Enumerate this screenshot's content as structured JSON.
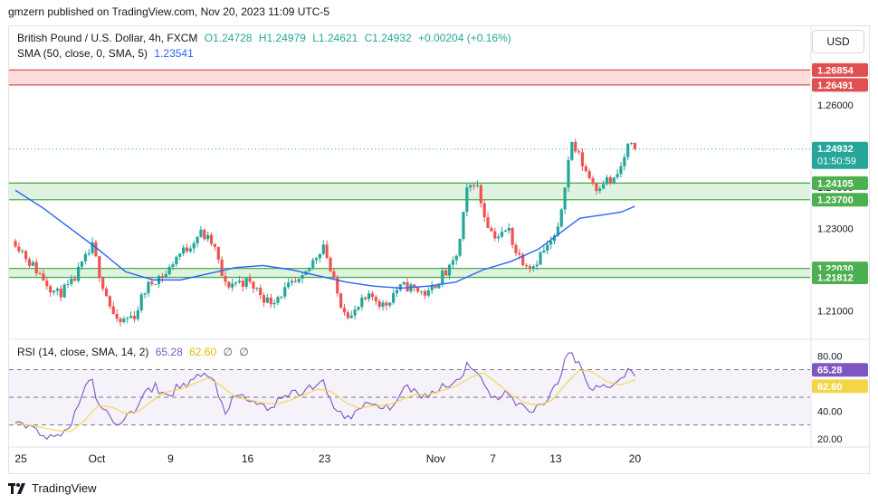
{
  "publisher_line": "gmzern published on TradingView.com, Nov 20, 2023 11:09 UTC-5",
  "legend": {
    "symbol": "British Pound / U.S. Dollar, 4h, FXCM",
    "open": "O1.24728",
    "high": "H1.24979",
    "low": "L1.24621",
    "close": "C1.24932",
    "change": "+0.00204 (+0.16%)",
    "sma_label": "SMA (50, close, 0, SMA, 5)",
    "sma_value": "1.23541"
  },
  "currency_button": "USD",
  "rsi_legend": {
    "label": "RSI (14, close, SMA, 14, 2)",
    "rsi": "65.28",
    "sma": "62.60",
    "d1": "∅",
    "d2": "∅"
  },
  "footer_brand": "TradingView",
  "colors": {
    "up": "#26a69a",
    "down": "#ef5350",
    "sma": "#2962ff",
    "rsi": "#7e57c2",
    "rsi_ma": "#f5d547",
    "zone_green_fill": "#dff3e0",
    "zone_green_line": "#4caf50",
    "zone_red_fill": "#fbdcdc",
    "zone_red_line": "#e05050"
  },
  "chart_data": [
    {
      "type": "candlestick",
      "symbol": "GBPUSD",
      "timeframe": "4h",
      "x_tick_labels": [
        "25",
        "Oct",
        "9",
        "16",
        "23",
        "Nov",
        "7",
        "13",
        "20"
      ],
      "y_ticks": [
        1.21,
        1.22,
        1.23,
        1.24,
        1.25,
        1.26
      ],
      "ylim": [
        1.2035,
        1.2717
      ],
      "price_labels": [
        {
          "value": 1.26854,
          "kind": "zone-top",
          "color": "#e05050"
        },
        {
          "value": 1.26491,
          "kind": "zone-bottom",
          "color": "#e05050"
        },
        {
          "value": 1.24932,
          "kind": "last-price",
          "color": "#26a69a",
          "countdown": "01:50:59"
        },
        {
          "value": 1.24105,
          "kind": "zone-top",
          "color": "#4caf50"
        },
        {
          "value": 1.237,
          "kind": "zone-bottom",
          "color": "#4caf50"
        },
        {
          "value": 1.2203,
          "kind": "zone-top",
          "color": "#4caf50"
        },
        {
          "value": 1.21812,
          "kind": "zone-bottom",
          "color": "#4caf50"
        }
      ],
      "zones": [
        {
          "from": 1.26491,
          "to": 1.26854,
          "color": "red"
        },
        {
          "from": 1.237,
          "to": 1.24105,
          "color": "green"
        },
        {
          "from": 1.21812,
          "to": 1.2203,
          "color": "green"
        }
      ],
      "close_path": [
        {
          "d": 0,
          "c": 1.227
        },
        {
          "d": 1,
          "c": 1.222
        },
        {
          "d": 2,
          "c": 1.218
        },
        {
          "d": 3,
          "c": 1.214
        },
        {
          "d": 4,
          "c": 1.216
        },
        {
          "d": 5,
          "c": 1.222
        },
        {
          "d": 5.6,
          "c": 1.2255
        },
        {
          "d": 6.2,
          "c": 1.218
        },
        {
          "d": 6.8,
          "c": 1.212
        },
        {
          "d": 7.4,
          "c": 1.2065
        },
        {
          "d": 8,
          "c": 1.208
        },
        {
          "d": 8.7,
          "c": 1.209
        },
        {
          "d": 9.4,
          "c": 1.215
        },
        {
          "d": 10.2,
          "c": 1.218
        },
        {
          "d": 11,
          "c": 1.219
        },
        {
          "d": 11.6,
          "c": 1.223
        },
        {
          "d": 12.4,
          "c": 1.225
        },
        {
          "d": 13.4,
          "c": 1.229
        },
        {
          "d": 14.4,
          "c": 1.226
        },
        {
          "d": 15.2,
          "c": 1.216
        },
        {
          "d": 16,
          "c": 1.217
        },
        {
          "d": 16.8,
          "c": 1.217
        },
        {
          "d": 17.6,
          "c": 1.215
        },
        {
          "d": 18.4,
          "c": 1.212
        },
        {
          "d": 19.2,
          "c": 1.214
        },
        {
          "d": 20,
          "c": 1.216
        },
        {
          "d": 20.8,
          "c": 1.217
        },
        {
          "d": 21.6,
          "c": 1.222
        },
        {
          "d": 22.4,
          "c": 1.2265
        },
        {
          "d": 23,
          "c": 1.218
        },
        {
          "d": 23.6,
          "c": 1.212
        },
        {
          "d": 24.4,
          "c": 1.2085
        },
        {
          "d": 25.2,
          "c": 1.212
        },
        {
          "d": 26,
          "c": 1.2135
        },
        {
          "d": 26.8,
          "c": 1.211
        },
        {
          "d": 27.6,
          "c": 1.215
        },
        {
          "d": 28.4,
          "c": 1.216
        },
        {
          "d": 29.2,
          "c": 1.215
        },
        {
          "d": 30,
          "c": 1.214
        },
        {
          "d": 30.8,
          "c": 1.218
        },
        {
          "d": 31.6,
          "c": 1.22
        },
        {
          "d": 32.2,
          "c": 1.225
        },
        {
          "d": 32.8,
          "c": 1.239
        },
        {
          "d": 33.4,
          "c": 1.242
        },
        {
          "d": 34,
          "c": 1.234
        },
        {
          "d": 34.6,
          "c": 1.229
        },
        {
          "d": 35.2,
          "c": 1.228
        },
        {
          "d": 35.8,
          "c": 1.23
        },
        {
          "d": 36.4,
          "c": 1.224
        },
        {
          "d": 37,
          "c": 1.222
        },
        {
          "d": 37.6,
          "c": 1.221
        },
        {
          "d": 38.2,
          "c": 1.224
        },
        {
          "d": 38.8,
          "c": 1.226
        },
        {
          "d": 39.4,
          "c": 1.229
        },
        {
          "d": 39.9,
          "c": 1.241
        },
        {
          "d": 40.4,
          "c": 1.251
        },
        {
          "d": 41,
          "c": 1.247
        },
        {
          "d": 41.6,
          "c": 1.243
        },
        {
          "d": 42.2,
          "c": 1.24
        },
        {
          "d": 42.8,
          "c": 1.242
        },
        {
          "d": 43.4,
          "c": 1.241
        },
        {
          "d": 44,
          "c": 1.245
        },
        {
          "d": 44.5,
          "c": 1.25
        },
        {
          "d": 45,
          "c": 1.2493
        }
      ],
      "series": [
        {
          "name": "SMA (50, close, 0, SMA, 5)",
          "kind": "line",
          "points": [
            {
              "d": 0,
              "v": 1.2393
            },
            {
              "d": 2,
              "v": 1.235
            },
            {
              "d": 4,
              "v": 1.23
            },
            {
              "d": 6,
              "v": 1.225
            },
            {
              "d": 8,
              "v": 1.2195
            },
            {
              "d": 10,
              "v": 1.2175
            },
            {
              "d": 12,
              "v": 1.2175
            },
            {
              "d": 14,
              "v": 1.219
            },
            {
              "d": 16,
              "v": 1.2205
            },
            {
              "d": 18,
              "v": 1.221
            },
            {
              "d": 20,
              "v": 1.22
            },
            {
              "d": 22,
              "v": 1.2185
            },
            {
              "d": 24,
              "v": 1.217
            },
            {
              "d": 26,
              "v": 1.216
            },
            {
              "d": 28,
              "v": 1.2155
            },
            {
              "d": 30,
              "v": 1.216
            },
            {
              "d": 32,
              "v": 1.217
            },
            {
              "d": 34,
              "v": 1.22
            },
            {
              "d": 36,
              "v": 1.222
            },
            {
              "d": 38,
              "v": 1.225
            },
            {
              "d": 40,
              "v": 1.23
            },
            {
              "d": 41,
              "v": 1.2325
            },
            {
              "d": 42,
              "v": 1.233
            },
            {
              "d": 43,
              "v": 1.2335
            },
            {
              "d": 44,
              "v": 1.234
            },
            {
              "d": 45,
              "v": 1.2354
            }
          ]
        }
      ]
    },
    {
      "type": "line",
      "title": "RSI (14, close, SMA, 14, 2)",
      "y_ticks": [
        20,
        40,
        60,
        80
      ],
      "ylim": [
        14,
        90
      ],
      "levels": [
        70,
        50,
        30
      ],
      "value_labels": [
        {
          "value": 65.28,
          "color": "#7e57c2"
        },
        {
          "value": 62.6,
          "color": "#f5d547"
        }
      ],
      "series": [
        {
          "name": "RSI",
          "points": [
            {
              "d": 0,
              "v": 31
            },
            {
              "d": 1,
              "v": 28
            },
            {
              "d": 2,
              "v": 24
            },
            {
              "d": 3,
              "v": 20
            },
            {
              "d": 4,
              "v": 30
            },
            {
              "d": 5,
              "v": 57
            },
            {
              "d": 5.6,
              "v": 60
            },
            {
              "d": 6.2,
              "v": 42
            },
            {
              "d": 6.8,
              "v": 36
            },
            {
              "d": 7.4,
              "v": 32
            },
            {
              "d": 8,
              "v": 35
            },
            {
              "d": 8.7,
              "v": 40
            },
            {
              "d": 9.4,
              "v": 52
            },
            {
              "d": 10.2,
              "v": 58
            },
            {
              "d": 11,
              "v": 50
            },
            {
              "d": 11.6,
              "v": 56
            },
            {
              "d": 12.4,
              "v": 60
            },
            {
              "d": 13.4,
              "v": 66
            },
            {
              "d": 14.4,
              "v": 62
            },
            {
              "d": 15.2,
              "v": 40
            },
            {
              "d": 16,
              "v": 50
            },
            {
              "d": 16.8,
              "v": 48
            },
            {
              "d": 17.6,
              "v": 45
            },
            {
              "d": 18.4,
              "v": 42
            },
            {
              "d": 19.2,
              "v": 47
            },
            {
              "d": 20,
              "v": 52
            },
            {
              "d": 20.8,
              "v": 54
            },
            {
              "d": 21.6,
              "v": 58
            },
            {
              "d": 22.4,
              "v": 60
            },
            {
              "d": 23,
              "v": 44
            },
            {
              "d": 23.6,
              "v": 40
            },
            {
              "d": 24.4,
              "v": 34
            },
            {
              "d": 25.2,
              "v": 43
            },
            {
              "d": 26,
              "v": 46
            },
            {
              "d": 26.8,
              "v": 40
            },
            {
              "d": 27.6,
              "v": 48
            },
            {
              "d": 28.4,
              "v": 56
            },
            {
              "d": 29.2,
              "v": 54
            },
            {
              "d": 30,
              "v": 50
            },
            {
              "d": 30.8,
              "v": 58
            },
            {
              "d": 31.6,
              "v": 60
            },
            {
              "d": 32.2,
              "v": 62
            },
            {
              "d": 32.8,
              "v": 74
            },
            {
              "d": 33.4,
              "v": 72
            },
            {
              "d": 34,
              "v": 58
            },
            {
              "d": 34.6,
              "v": 52
            },
            {
              "d": 35.2,
              "v": 50
            },
            {
              "d": 35.8,
              "v": 54
            },
            {
              "d": 36.4,
              "v": 44
            },
            {
              "d": 37,
              "v": 42
            },
            {
              "d": 37.6,
              "v": 41
            },
            {
              "d": 38.2,
              "v": 45
            },
            {
              "d": 38.8,
              "v": 52
            },
            {
              "d": 39.4,
              "v": 58
            },
            {
              "d": 39.9,
              "v": 76
            },
            {
              "d": 40.4,
              "v": 84
            },
            {
              "d": 41,
              "v": 72
            },
            {
              "d": 41.6,
              "v": 60
            },
            {
              "d": 42.2,
              "v": 57
            },
            {
              "d": 42.8,
              "v": 60
            },
            {
              "d": 43.4,
              "v": 56
            },
            {
              "d": 44,
              "v": 64
            },
            {
              "d": 44.5,
              "v": 72
            },
            {
              "d": 45,
              "v": 65.28
            }
          ]
        },
        {
          "name": "RSI-based SMA",
          "points": [
            {
              "d": 0,
              "v": 31
            },
            {
              "d": 1,
              "v": 30
            },
            {
              "d": 2,
              "v": 28
            },
            {
              "d": 3,
              "v": 26
            },
            {
              "d": 4,
              "v": 25
            },
            {
              "d": 5,
              "v": 33
            },
            {
              "d": 6,
              "v": 44
            },
            {
              "d": 7,
              "v": 43
            },
            {
              "d": 8,
              "v": 38
            },
            {
              "d": 9,
              "v": 40
            },
            {
              "d": 10,
              "v": 48
            },
            {
              "d": 11,
              "v": 54
            },
            {
              "d": 12,
              "v": 56
            },
            {
              "d": 13,
              "v": 60
            },
            {
              "d": 14,
              "v": 64
            },
            {
              "d": 15,
              "v": 58
            },
            {
              "d": 16,
              "v": 50
            },
            {
              "d": 17,
              "v": 48
            },
            {
              "d": 18,
              "v": 46
            },
            {
              "d": 19,
              "v": 45
            },
            {
              "d": 20,
              "v": 48
            },
            {
              "d": 21,
              "v": 52
            },
            {
              "d": 22,
              "v": 56
            },
            {
              "d": 23,
              "v": 54
            },
            {
              "d": 24,
              "v": 46
            },
            {
              "d": 25,
              "v": 42
            },
            {
              "d": 26,
              "v": 44
            },
            {
              "d": 27,
              "v": 44
            },
            {
              "d": 28,
              "v": 48
            },
            {
              "d": 29,
              "v": 52
            },
            {
              "d": 30,
              "v": 52
            },
            {
              "d": 31,
              "v": 55
            },
            {
              "d": 32,
              "v": 58
            },
            {
              "d": 33,
              "v": 64
            },
            {
              "d": 34,
              "v": 68
            },
            {
              "d": 35,
              "v": 60
            },
            {
              "d": 36,
              "v": 52
            },
            {
              "d": 37,
              "v": 46
            },
            {
              "d": 38,
              "v": 44
            },
            {
              "d": 39,
              "v": 48
            },
            {
              "d": 40,
              "v": 60
            },
            {
              "d": 41,
              "v": 70
            },
            {
              "d": 42,
              "v": 68
            },
            {
              "d": 43,
              "v": 61
            },
            {
              "d": 44,
              "v": 59
            },
            {
              "d": 45,
              "v": 62.6
            }
          ]
        }
      ]
    }
  ]
}
